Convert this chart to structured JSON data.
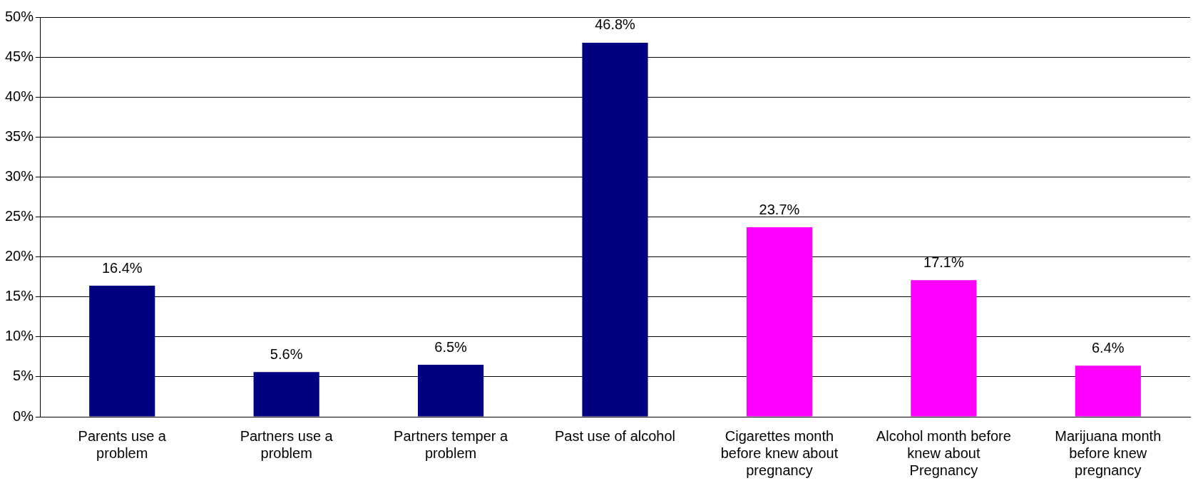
{
  "chart_data": {
    "type": "bar",
    "categories": [
      "Parents use a problem",
      "Partners use a problem",
      "Partners temper a problem",
      "Past use of alcohol",
      "Cigarettes month before knew about pregnancy",
      "Alcohol month before knew about Pregnancy",
      "Marijuana month before knew pregnancy"
    ],
    "values": [
      16.4,
      5.6,
      6.5,
      46.8,
      23.7,
      17.1,
      6.4
    ],
    "colors": [
      "#000080",
      "#000080",
      "#000080",
      "#000080",
      "#ff00ff",
      "#ff00ff",
      "#ff00ff"
    ],
    "value_labels": [
      "16.4%",
      "5.6%",
      "6.5%",
      "46.8%",
      "23.7%",
      "17.1%",
      "6.4%"
    ],
    "ylim": [
      0,
      50
    ],
    "yticks": [
      {
        "value": 0,
        "label": "0%"
      },
      {
        "value": 5,
        "label": "5%"
      },
      {
        "value": 10,
        "label": "10%"
      },
      {
        "value": 15,
        "label": "15%"
      },
      {
        "value": 20,
        "label": "20%"
      },
      {
        "value": 25,
        "label": "25%"
      },
      {
        "value": 30,
        "label": "30%"
      },
      {
        "value": 35,
        "label": "35%"
      },
      {
        "value": 40,
        "label": "40%"
      },
      {
        "value": 45,
        "label": "45%"
      },
      {
        "value": 50,
        "label": "50%"
      }
    ],
    "grid": "y",
    "legend": false
  }
}
